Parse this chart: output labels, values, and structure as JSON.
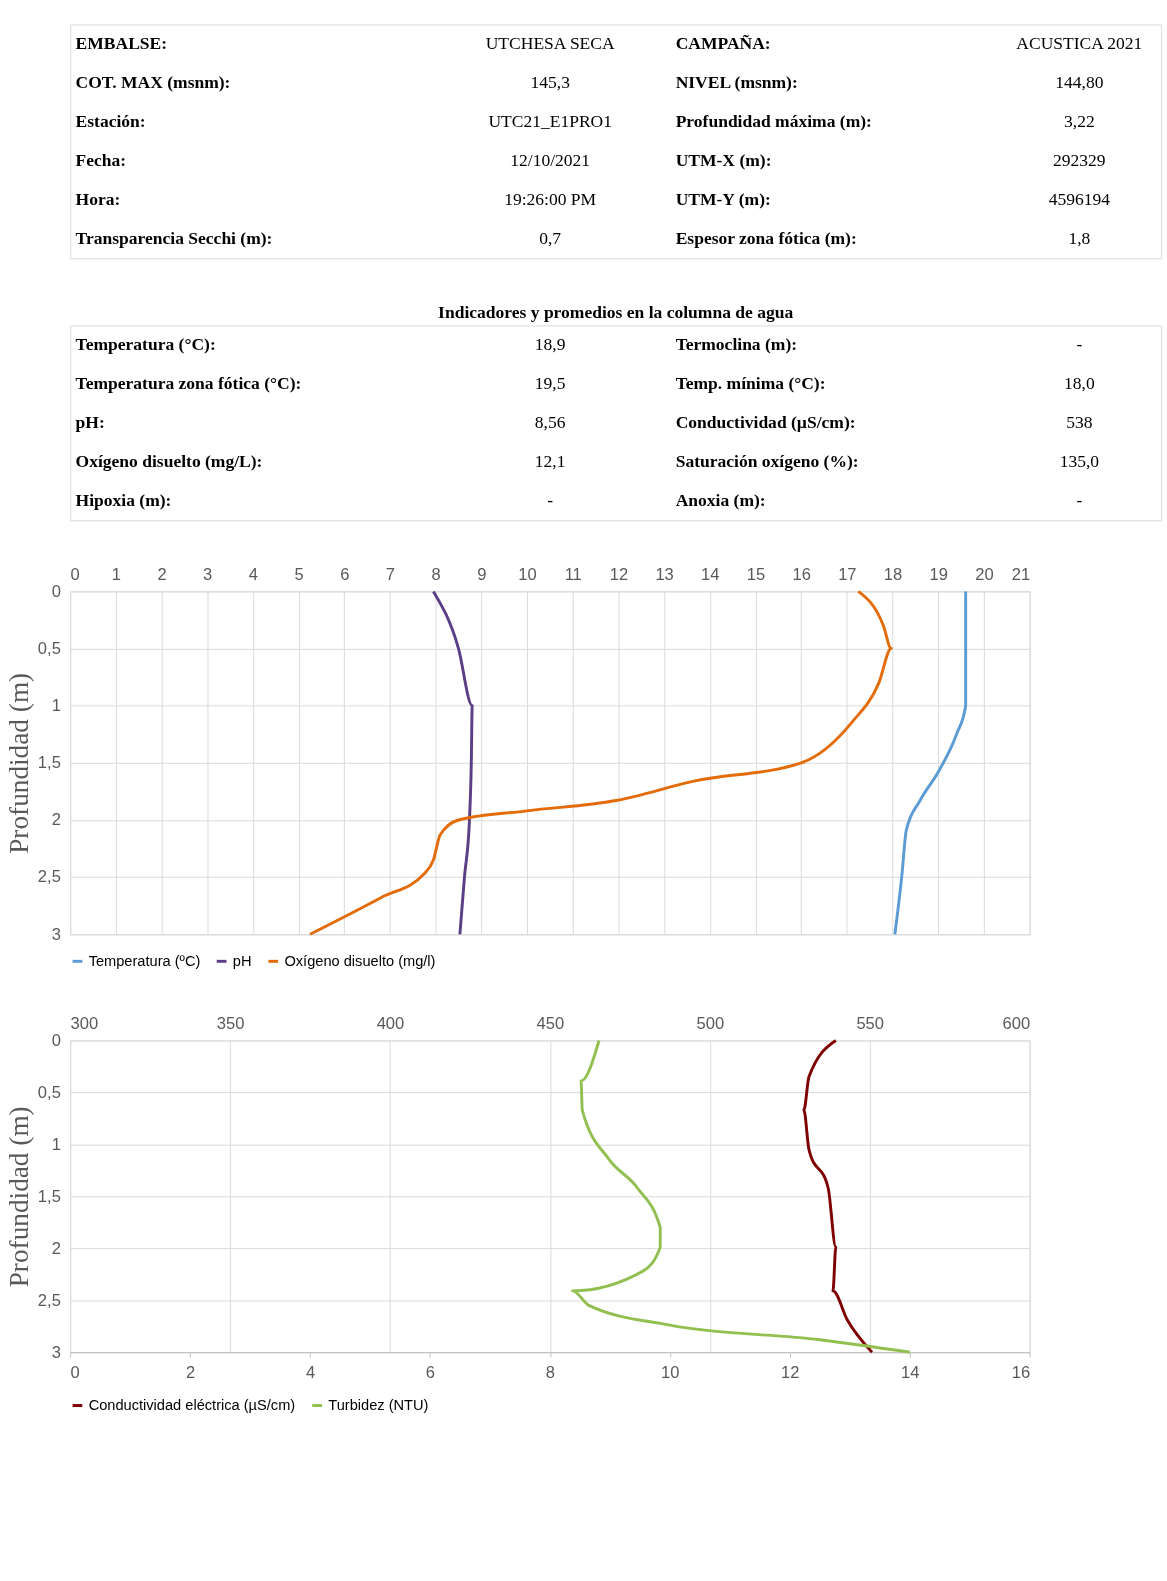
{
  "chart_data": [
    {
      "type": "other",
      "annotations": [
        "EMBALSE:",
        "UTCHESA SECA",
        "CAMPAÑA:",
        "ACUSTICA 2021",
        "COT. MAX (msnm):",
        "145,3",
        "NIVEL (msnm):",
        "144,80",
        "Estación:",
        "UTC21_E1PRO1",
        "Profundidad máxima (m):",
        "3,22",
        "Fecha:",
        "12/10/2021",
        "UTM-X (m):",
        "292329",
        "Hora:",
        "19:26:00 PM",
        "UTM-Y (m):",
        "4596194",
        "Transparencia Secchi (m):",
        "0,7",
        "Espesor zona fótica (m):",
        "1,8"
      ]
    },
    {
      "type": "other",
      "title": "Indicadores y promedios en la columna de agua",
      "annotations": [
        "Temperatura (°C):",
        "18,9",
        "Termoclina (m):",
        "-",
        "Temperatura zona fótica (°C):",
        "19,5",
        "Temp. mínima (°C):",
        "18,0",
        "pH:",
        "8,56",
        "Conductividad (µS/cm):",
        "538",
        "Oxígeno disuelto (mg/L):",
        "12,1",
        "Saturación oxígeno (%):",
        "135,0",
        "Hipoxia (m):",
        "-",
        "Anoxia (m):",
        "-"
      ]
    },
    {
      "type": "line",
      "ylabel": "Profundidad (m)",
      "ylim": [
        3,
        0
      ],
      "yticks": [
        0,
        {
          "value": 0.5,
          "label": "0,5"
        },
        1,
        {
          "value": 1.5,
          "label": "1,5"
        },
        2,
        {
          "value": 2.5,
          "label": "2,5"
        },
        3
      ],
      "xlim": [
        0,
        21
      ],
      "xticks": [
        0,
        1,
        2,
        3,
        4,
        5,
        6,
        7,
        8,
        9,
        10,
        11,
        12,
        13,
        14,
        15,
        16,
        17,
        18,
        19,
        20,
        21
      ],
      "grid": true,
      "legend": "bottom",
      "series": [
        {
          "name": "Temperatura (ºC)",
          "color": "#5b9bd5",
          "x": [
            19.6,
            19.6,
            19.6,
            19.4,
            19.0,
            18.6,
            18.3,
            18.2,
            18.05
          ],
          "values": [
            0,
            0.5,
            1,
            1.25,
            1.58,
            1.83,
            2.09,
            2.5,
            3
          ]
        },
        {
          "name": "pH",
          "color": "#5b3f86",
          "x": [
            7.95,
            8.5,
            8.8,
            8.78,
            8.74,
            8.63,
            8.53
          ],
          "values": [
            0,
            0.5,
            1,
            1.5,
            2,
            2.5,
            3
          ]
        },
        {
          "name": "Oxígeno disuelto (mg/l)",
          "color": "#e36c09",
          "x": [
            17.25,
            17.8,
            17.97,
            17.7,
            17.1,
            16.0,
            13.65,
            11.95,
            10.0,
            8.5,
            8.1,
            7.95,
            7.75,
            6.8,
            5.25
          ],
          "values": [
            0,
            0.3,
            0.5,
            0.8,
            1.15,
            1.5,
            1.66,
            1.83,
            1.92,
            2.0,
            2.13,
            2.35,
            2.47,
            2.68,
            3
          ]
        }
      ]
    },
    {
      "type": "line",
      "ylabel": "Profundidad (m)",
      "ylim": [
        3,
        0
      ],
      "yticks": [
        0,
        {
          "value": 0.5,
          "label": "0,5"
        },
        1,
        {
          "value": 1.5,
          "label": "1,5"
        },
        2,
        {
          "value": 2.5,
          "label": "2,5"
        },
        3
      ],
      "x2lim": [
        300,
        600
      ],
      "x2ticks": [
        300,
        350,
        400,
        450,
        500,
        550,
        600
      ],
      "xlim": [
        0,
        16
      ],
      "xticks": [
        0,
        2,
        4,
        6,
        8,
        10,
        12,
        14,
        16
      ],
      "grid": true,
      "legend": "bottom",
      "series": [
        {
          "name": "Conductividad eléctrica (µS/cm)",
          "color": "#7f0000",
          "axis": "x2",
          "x": [
            539.4,
            531,
            529.4,
            531,
            537,
            539.4,
            538.5,
            543,
            550.7
          ],
          "values": [
            0,
            0.35,
            0.67,
            1.05,
            1.42,
            1.99,
            2.41,
            2.69,
            3
          ]
        },
        {
          "name": "Turbidez (NTU)",
          "color": "#92c050",
          "x": [
            8.82,
            8.52,
            8.54,
            8.98,
            9.46,
            9.84,
            9.84,
            9.55,
            8.38,
            8.65,
            10.0,
            12.5,
            14.0
          ],
          "values": [
            0,
            0.39,
            0.67,
            1.14,
            1.42,
            1.8,
            1.99,
            2.22,
            2.41,
            2.55,
            2.74,
            2.88,
            3
          ]
        }
      ]
    }
  ]
}
